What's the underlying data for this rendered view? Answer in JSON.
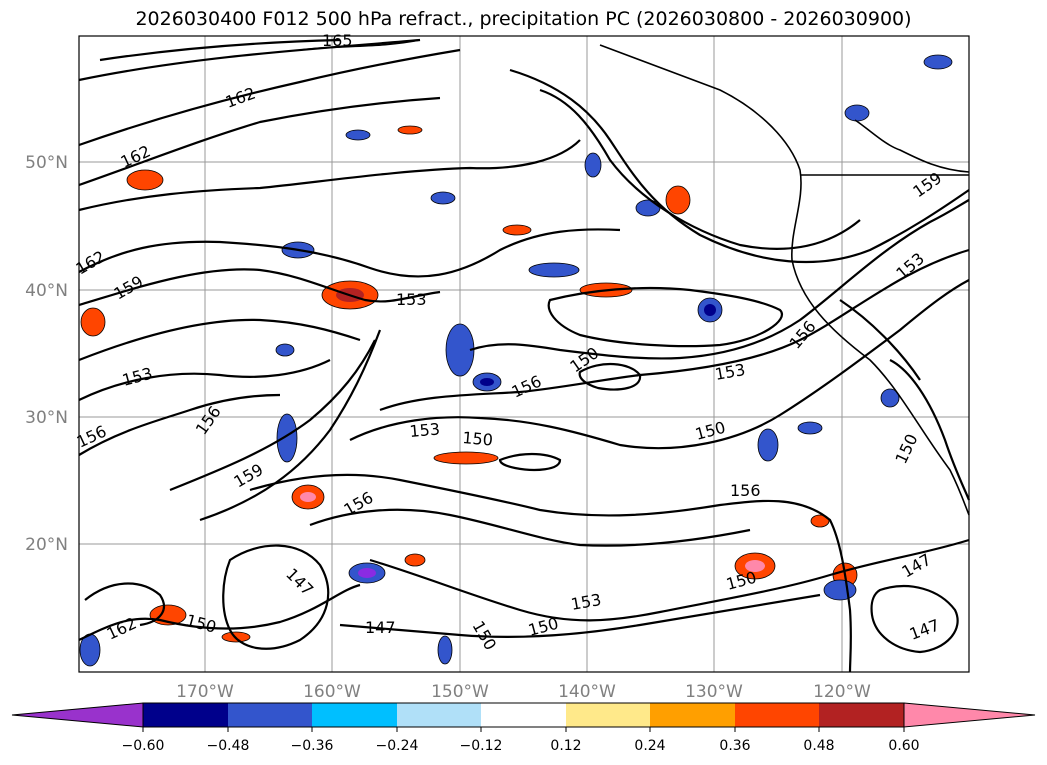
{
  "title": "2026030400 F012 500 hPa refract., precipitation PC (2026030800 - 2026030900)",
  "map": {
    "lat_labels": [
      "50°N",
      "40°N",
      "30°N",
      "20°N"
    ],
    "lon_labels": [
      "170°W",
      "160°W",
      "150°W",
      "140°W",
      "130°W",
      "120°W"
    ],
    "contour_labels": [
      "165",
      "162",
      "162",
      "162",
      "159",
      "153",
      "153",
      "156",
      "156",
      "159",
      "153",
      "150",
      "156",
      "150",
      "153",
      "150",
      "153",
      "156",
      "159",
      "156",
      "150",
      "156",
      "147",
      "147",
      "150",
      "150",
      "153",
      "150",
      "147",
      "147",
      "150"
    ]
  },
  "colorbar": {
    "ticks": [
      "−0.60",
      "−0.48",
      "−0.36",
      "−0.24",
      "−0.12",
      "0.12",
      "0.24",
      "0.36",
      "0.48",
      "0.60"
    ],
    "colors": [
      "#8a2be2",
      "#00008b",
      "#3355cc",
      "#00bfff",
      "#b0e0f8",
      "#ffffff",
      "#ffe98a",
      "#ff9f00",
      "#ff4500",
      "#b22222",
      "#ff88aa"
    ],
    "low_extend_color": "#9932cc",
    "high_extend_color": "#ff88aa"
  }
}
